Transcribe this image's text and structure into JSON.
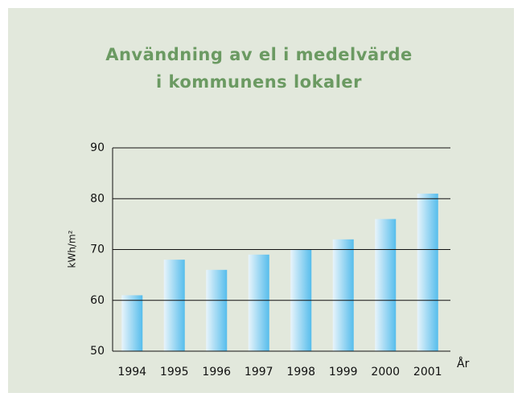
{
  "chart_data": {
    "type": "bar",
    "title": [
      "Användning av el i medelvärde",
      "i kommunens lokaler"
    ],
    "x_label": "År",
    "y_label": "kWh/m²",
    "categories": [
      "1994",
      "1995",
      "1996",
      "1997",
      "1998",
      "1999",
      "2000",
      "2001"
    ],
    "values": [
      61,
      68,
      66,
      69,
      70,
      72,
      76,
      81
    ],
    "color": "#56bdec",
    "ylim": [
      50,
      90
    ],
    "yticks": [
      50,
      60,
      70,
      80,
      90
    ],
    "grid": true
  }
}
